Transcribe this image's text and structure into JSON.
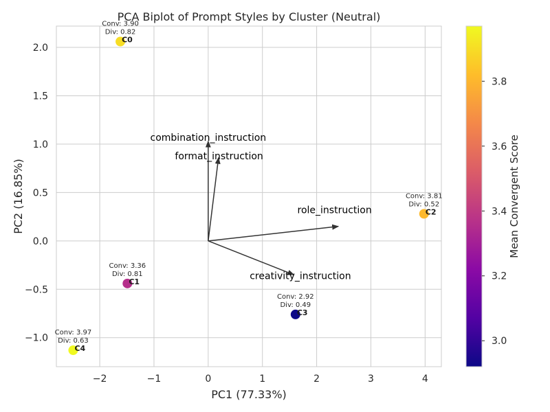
{
  "chart_data": {
    "type": "scatter",
    "title": "PCA Biplot of Prompt Styles by Cluster (Neutral)",
    "xlabel": "PC1 (77.33%)",
    "ylabel": "PC2 (16.85%)",
    "xlim": [
      -2.8,
      4.3
    ],
    "ylim": [
      -1.3,
      2.22
    ],
    "xticks": [
      -2,
      -1,
      0,
      1,
      2,
      3,
      4
    ],
    "xtick_labels": [
      "−2",
      "−1",
      "0",
      "1",
      "2",
      "3",
      "4"
    ],
    "yticks": [
      -1.0,
      -0.5,
      0.0,
      0.5,
      1.0,
      1.5,
      2.0
    ],
    "ytick_labels": [
      "−1.0",
      "−0.5",
      "0.0",
      "0.5",
      "1.0",
      "1.5",
      "2.0"
    ],
    "grid": true,
    "points": [
      {
        "label": "C0",
        "x": -1.62,
        "y": 2.06,
        "conv": 3.9,
        "annotation": [
          "Conv: 3.90",
          "Div: 0.82"
        ]
      },
      {
        "label": "C1",
        "x": -1.49,
        "y": -0.44,
        "conv": 3.36,
        "annotation": [
          "Conv: 3.36",
          "Div: 0.81"
        ]
      },
      {
        "label": "C2",
        "x": 3.98,
        "y": 0.28,
        "conv": 3.81,
        "annotation": [
          "Conv: 3.81",
          "Div: 0.52"
        ]
      },
      {
        "label": "C3",
        "x": 1.61,
        "y": -0.76,
        "conv": 2.92,
        "annotation": [
          "Conv: 2.92",
          "Div: 0.49"
        ]
      },
      {
        "label": "C4",
        "x": -2.49,
        "y": -1.13,
        "conv": 3.97,
        "annotation": [
          "Conv: 3.97",
          "Div: 0.63"
        ]
      }
    ],
    "loadings": [
      {
        "name": "combination_instruction",
        "x": 0.0,
        "y": 1.03,
        "label_x": 0.0,
        "label_y": 1.07
      },
      {
        "name": "format_instruction",
        "x": 0.19,
        "y": 0.86,
        "label_x": 0.2,
        "label_y": 0.88
      },
      {
        "name": "role_instruction",
        "x": 2.4,
        "y": 0.15,
        "label_x": 2.33,
        "label_y": 0.32
      },
      {
        "name": "creativity_instruction",
        "x": 1.58,
        "y": -0.35,
        "label_x": 1.7,
        "label_y": -0.36
      }
    ],
    "colorbar": {
      "label": "Mean Convergent Score",
      "range": [
        2.92,
        3.97
      ],
      "ticks": [
        3.0,
        3.2,
        3.4,
        3.6,
        3.8
      ],
      "tick_labels": [
        "3.0",
        "3.2",
        "3.4",
        "3.6",
        "3.8"
      ],
      "colormap": "plasma",
      "colormap_stops": [
        "#0d0887",
        "#5302a3",
        "#8b0aa5",
        "#b83289",
        "#db5c68",
        "#f48849",
        "#febd2a",
        "#f0f921"
      ]
    },
    "colors": {
      "grid": "#cccccc",
      "frame": "#cccccc",
      "arrow": "#333333",
      "text": "#262626"
    }
  }
}
